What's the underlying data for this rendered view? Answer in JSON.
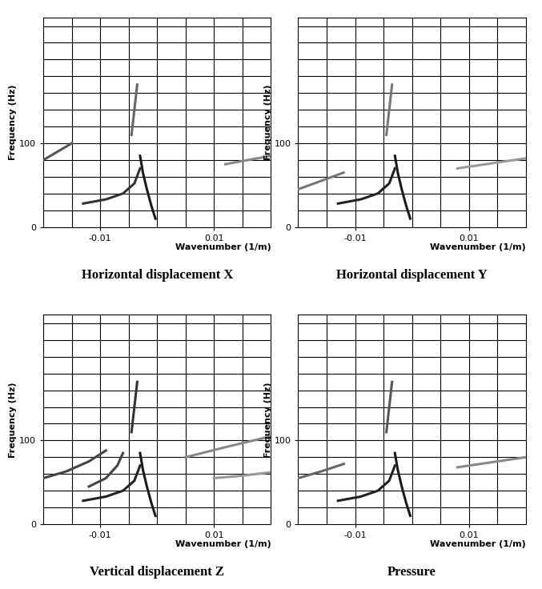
{
  "chart_data": [
    {
      "type": "line",
      "title": "Horizontal displacement X",
      "x_label": "Wavenumber (1/m)",
      "y_label": "Frequency (Hz)",
      "xlim": [
        -0.02,
        0.02
      ],
      "ylim": [
        0,
        250
      ],
      "xticks": [
        -0.01,
        0.01
      ],
      "yticks": [
        0,
        100
      ],
      "xgrid": [
        -0.015,
        -0.01,
        -0.005,
        0,
        0.005,
        0.01,
        0.015
      ],
      "ygrid": [
        20,
        40,
        60,
        80,
        100,
        120,
        140,
        160,
        180,
        200,
        220,
        240
      ],
      "grid": true,
      "series": [
        {
          "color": "#1a1a1a",
          "x": [
            -0.0003,
            -0.001,
            -0.0018,
            -0.0025,
            -0.003
          ],
          "values": [
            10,
            25,
            45,
            65,
            85
          ]
        },
        {
          "color": "#333333",
          "x": [
            -0.013,
            -0.009,
            -0.006,
            -0.004,
            -0.003
          ],
          "values": [
            28,
            33,
            40,
            52,
            70
          ]
        },
        {
          "color": "#555555",
          "x": [
            -0.02,
            -0.017,
            -0.015
          ],
          "values": [
            80,
            92,
            100
          ]
        },
        {
          "color": "#666666",
          "x": [
            -0.0045,
            -0.004,
            -0.0035
          ],
          "values": [
            110,
            140,
            170
          ]
        },
        {
          "color": "#888888",
          "x": [
            0.012,
            0.016,
            0.02
          ],
          "values": [
            75,
            80,
            85
          ]
        }
      ]
    },
    {
      "type": "line",
      "title": "Horizontal displacement Y",
      "x_label": "Wavenumber (1/m)",
      "y_label": "Frequency (Hz)",
      "xlim": [
        -0.02,
        0.02
      ],
      "ylim": [
        0,
        250
      ],
      "xticks": [
        -0.01,
        0.01
      ],
      "yticks": [
        0,
        100
      ],
      "xgrid": [
        -0.015,
        -0.01,
        -0.005,
        0,
        0.005,
        0.01,
        0.015
      ],
      "ygrid": [
        20,
        40,
        60,
        80,
        100,
        120,
        140,
        160,
        180,
        200,
        220,
        240
      ],
      "grid": true,
      "series": [
        {
          "color": "#1a1a1a",
          "x": [
            -0.0003,
            -0.001,
            -0.0018,
            -0.0025,
            -0.003
          ],
          "values": [
            10,
            25,
            45,
            65,
            85
          ]
        },
        {
          "color": "#222222",
          "x": [
            -0.013,
            -0.009,
            -0.006,
            -0.004,
            -0.003
          ],
          "values": [
            28,
            33,
            40,
            52,
            70
          ]
        },
        {
          "color": "#777777",
          "x": [
            -0.02,
            -0.016,
            -0.012
          ],
          "values": [
            45,
            55,
            65
          ]
        },
        {
          "color": "#777777",
          "x": [
            -0.0045,
            -0.004,
            -0.0035
          ],
          "values": [
            110,
            140,
            170
          ]
        },
        {
          "color": "#999999",
          "x": [
            0.008,
            0.014,
            0.02
          ],
          "values": [
            70,
            76,
            82
          ]
        }
      ]
    },
    {
      "type": "line",
      "title": "Vertical displacement Z",
      "x_label": "Wavenumber (1/m)",
      "y_label": "Frequency (Hz)",
      "xlim": [
        -0.02,
        0.02
      ],
      "ylim": [
        0,
        250
      ],
      "xticks": [
        -0.01,
        0.01
      ],
      "yticks": [
        0,
        100
      ],
      "xgrid": [
        -0.015,
        -0.01,
        -0.005,
        0,
        0.005,
        0.01,
        0.015
      ],
      "ygrid": [
        20,
        40,
        60,
        80,
        100,
        120,
        140,
        160,
        180,
        200,
        220,
        240
      ],
      "grid": true,
      "series": [
        {
          "color": "#1a1a1a",
          "x": [
            -0.0003,
            -0.001,
            -0.0018,
            -0.0025,
            -0.003
          ],
          "values": [
            10,
            25,
            45,
            65,
            85
          ]
        },
        {
          "color": "#222222",
          "x": [
            -0.013,
            -0.009,
            -0.006,
            -0.004,
            -0.003
          ],
          "values": [
            28,
            33,
            40,
            52,
            70
          ]
        },
        {
          "color": "#444444",
          "x": [
            -0.02,
            -0.016,
            -0.012,
            -0.009
          ],
          "values": [
            55,
            63,
            75,
            88
          ]
        },
        {
          "color": "#444444",
          "x": [
            -0.012,
            -0.009,
            -0.007,
            -0.006
          ],
          "values": [
            45,
            55,
            70,
            85
          ]
        },
        {
          "color": "#333333",
          "x": [
            -0.0045,
            -0.004,
            -0.0035
          ],
          "values": [
            110,
            140,
            170
          ]
        },
        {
          "color": "#888888",
          "x": [
            0.005,
            0.012,
            0.02
          ],
          "values": [
            80,
            92,
            105
          ]
        },
        {
          "color": "#999999",
          "x": [
            0.01,
            0.015,
            0.02
          ],
          "values": [
            55,
            58,
            62
          ]
        }
      ]
    },
    {
      "type": "line",
      "title": "Pressure",
      "x_label": "Wavenumber (1/m)",
      "y_label": "Frequency (Hz)",
      "xlim": [
        -0.02,
        0.02
      ],
      "ylim": [
        0,
        250
      ],
      "xticks": [
        -0.01,
        0.01
      ],
      "yticks": [
        0,
        100
      ],
      "xgrid": [
        -0.015,
        -0.01,
        -0.005,
        0,
        0.005,
        0.01,
        0.015
      ],
      "ygrid": [
        20,
        40,
        60,
        80,
        100,
        120,
        140,
        160,
        180,
        200,
        220,
        240
      ],
      "grid": true,
      "series": [
        {
          "color": "#1a1a1a",
          "x": [
            -0.0003,
            -0.001,
            -0.0018,
            -0.0025,
            -0.003
          ],
          "values": [
            10,
            25,
            45,
            65,
            85
          ]
        },
        {
          "color": "#222222",
          "x": [
            -0.013,
            -0.009,
            -0.006,
            -0.004,
            -0.003
          ],
          "values": [
            28,
            33,
            40,
            52,
            70
          ]
        },
        {
          "color": "#666666",
          "x": [
            -0.02,
            -0.016,
            -0.012
          ],
          "values": [
            55,
            63,
            72
          ]
        },
        {
          "color": "#555555",
          "x": [
            -0.0045,
            -0.004,
            -0.0035
          ],
          "values": [
            110,
            140,
            170
          ]
        },
        {
          "color": "#888888",
          "x": [
            0.008,
            0.014,
            0.02
          ],
          "values": [
            68,
            74,
            80
          ]
        }
      ]
    }
  ]
}
